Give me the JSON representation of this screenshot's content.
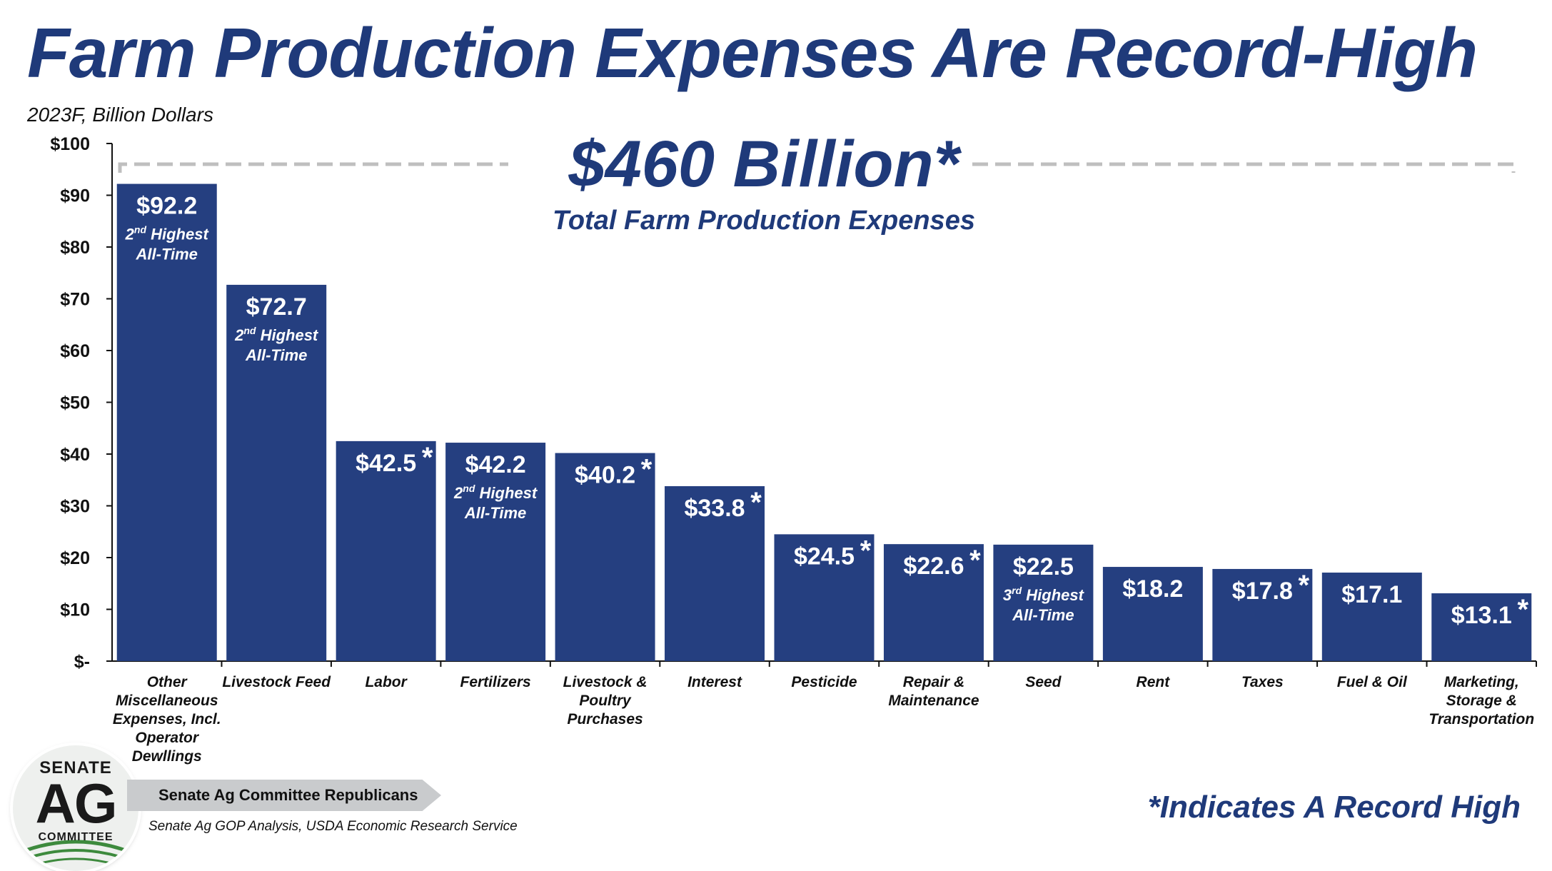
{
  "header": {
    "title": "Farm Production Expenses Are Record-High",
    "subtitle": "2023F, Billion Dollars"
  },
  "total": {
    "value": "$460 Billion*",
    "caption": "Total Farm Production Expenses"
  },
  "footer": {
    "record_note": "*Indicates A Record High",
    "banner": "Senate Ag Committee Republicans",
    "source": "Senate Ag GOP Analysis, USDA Economic Research Service",
    "seal_top": "SENATE",
    "seal_mid": "AG",
    "seal_bot": "COMMITTEE"
  },
  "colors": {
    "bar": "#253f80",
    "title": "#1f3a7a",
    "dashed": "#bfbfbf"
  },
  "chart_data": {
    "type": "bar",
    "title": "Farm Production Expenses Are Record-High",
    "ylabel": "2023F, Billion Dollars",
    "ylim": [
      0,
      100
    ],
    "yticks": [
      {
        "value": 0,
        "label": "$-"
      },
      {
        "value": 10,
        "label": "$10"
      },
      {
        "value": 20,
        "label": "$20"
      },
      {
        "value": 30,
        "label": "$30"
      },
      {
        "value": 40,
        "label": "$40"
      },
      {
        "value": 50,
        "label": "$50"
      },
      {
        "value": 60,
        "label": "$60"
      },
      {
        "value": 70,
        "label": "$70"
      },
      {
        "value": 80,
        "label": "$80"
      },
      {
        "value": 90,
        "label": "$90"
      },
      {
        "value": 100,
        "label": "$100"
      }
    ],
    "categories": [
      "Other Miscellaneous Expenses, Incl. Operator Dewllings",
      "Livestock Feed",
      "Labor",
      "Fertilizers",
      "Livestock & Poultry Purchases",
      "Interest",
      "Pesticide",
      "Repair & Maintenance",
      "Seed",
      "Rent",
      "Taxes",
      "Fuel & Oil",
      "Marketing, Storage & Transportation"
    ],
    "category_lines": [
      [
        "Other",
        "Miscellaneous",
        "Expenses, Incl.",
        "Operator",
        "Dewllings"
      ],
      [
        "Livestock Feed"
      ],
      [
        "Labor"
      ],
      [
        "Fertilizers"
      ],
      [
        "Livestock &",
        "Poultry",
        "Purchases"
      ],
      [
        "Interest"
      ],
      [
        "Pesticide"
      ],
      [
        "Repair &",
        "Maintenance"
      ],
      [
        "Seed"
      ],
      [
        "Rent"
      ],
      [
        "Taxes"
      ],
      [
        "Fuel & Oil"
      ],
      [
        "Marketing,",
        "Storage &",
        "Transportation"
      ]
    ],
    "values": [
      92.2,
      72.7,
      42.5,
      42.2,
      40.2,
      33.8,
      24.5,
      22.6,
      22.5,
      18.2,
      17.8,
      17.1,
      13.1
    ],
    "data_labels": [
      "$92.2",
      "$72.7",
      "$42.5",
      "$42.2",
      "$40.2",
      "$33.8",
      "$24.5",
      "$22.6",
      "$22.5",
      "$18.2",
      "$17.8",
      "$17.1",
      "$13.1"
    ],
    "record_high": [
      false,
      false,
      true,
      false,
      true,
      true,
      true,
      true,
      false,
      false,
      true,
      false,
      true
    ],
    "rank_notes": [
      {
        "index": 0,
        "rank": "2",
        "suffix": "nd",
        "word": " Highest",
        "line2": "All-Time"
      },
      {
        "index": 1,
        "rank": "2",
        "suffix": "nd",
        "word": " Highest",
        "line2": "All-Time"
      },
      {
        "index": 3,
        "rank": "2",
        "suffix": "nd",
        "word": " Highest",
        "line2": "All-Time"
      },
      {
        "index": 8,
        "rank": "3",
        "suffix": "rd",
        "word": " Highest",
        "line2": "All-Time"
      }
    ],
    "record_marker": "*"
  }
}
